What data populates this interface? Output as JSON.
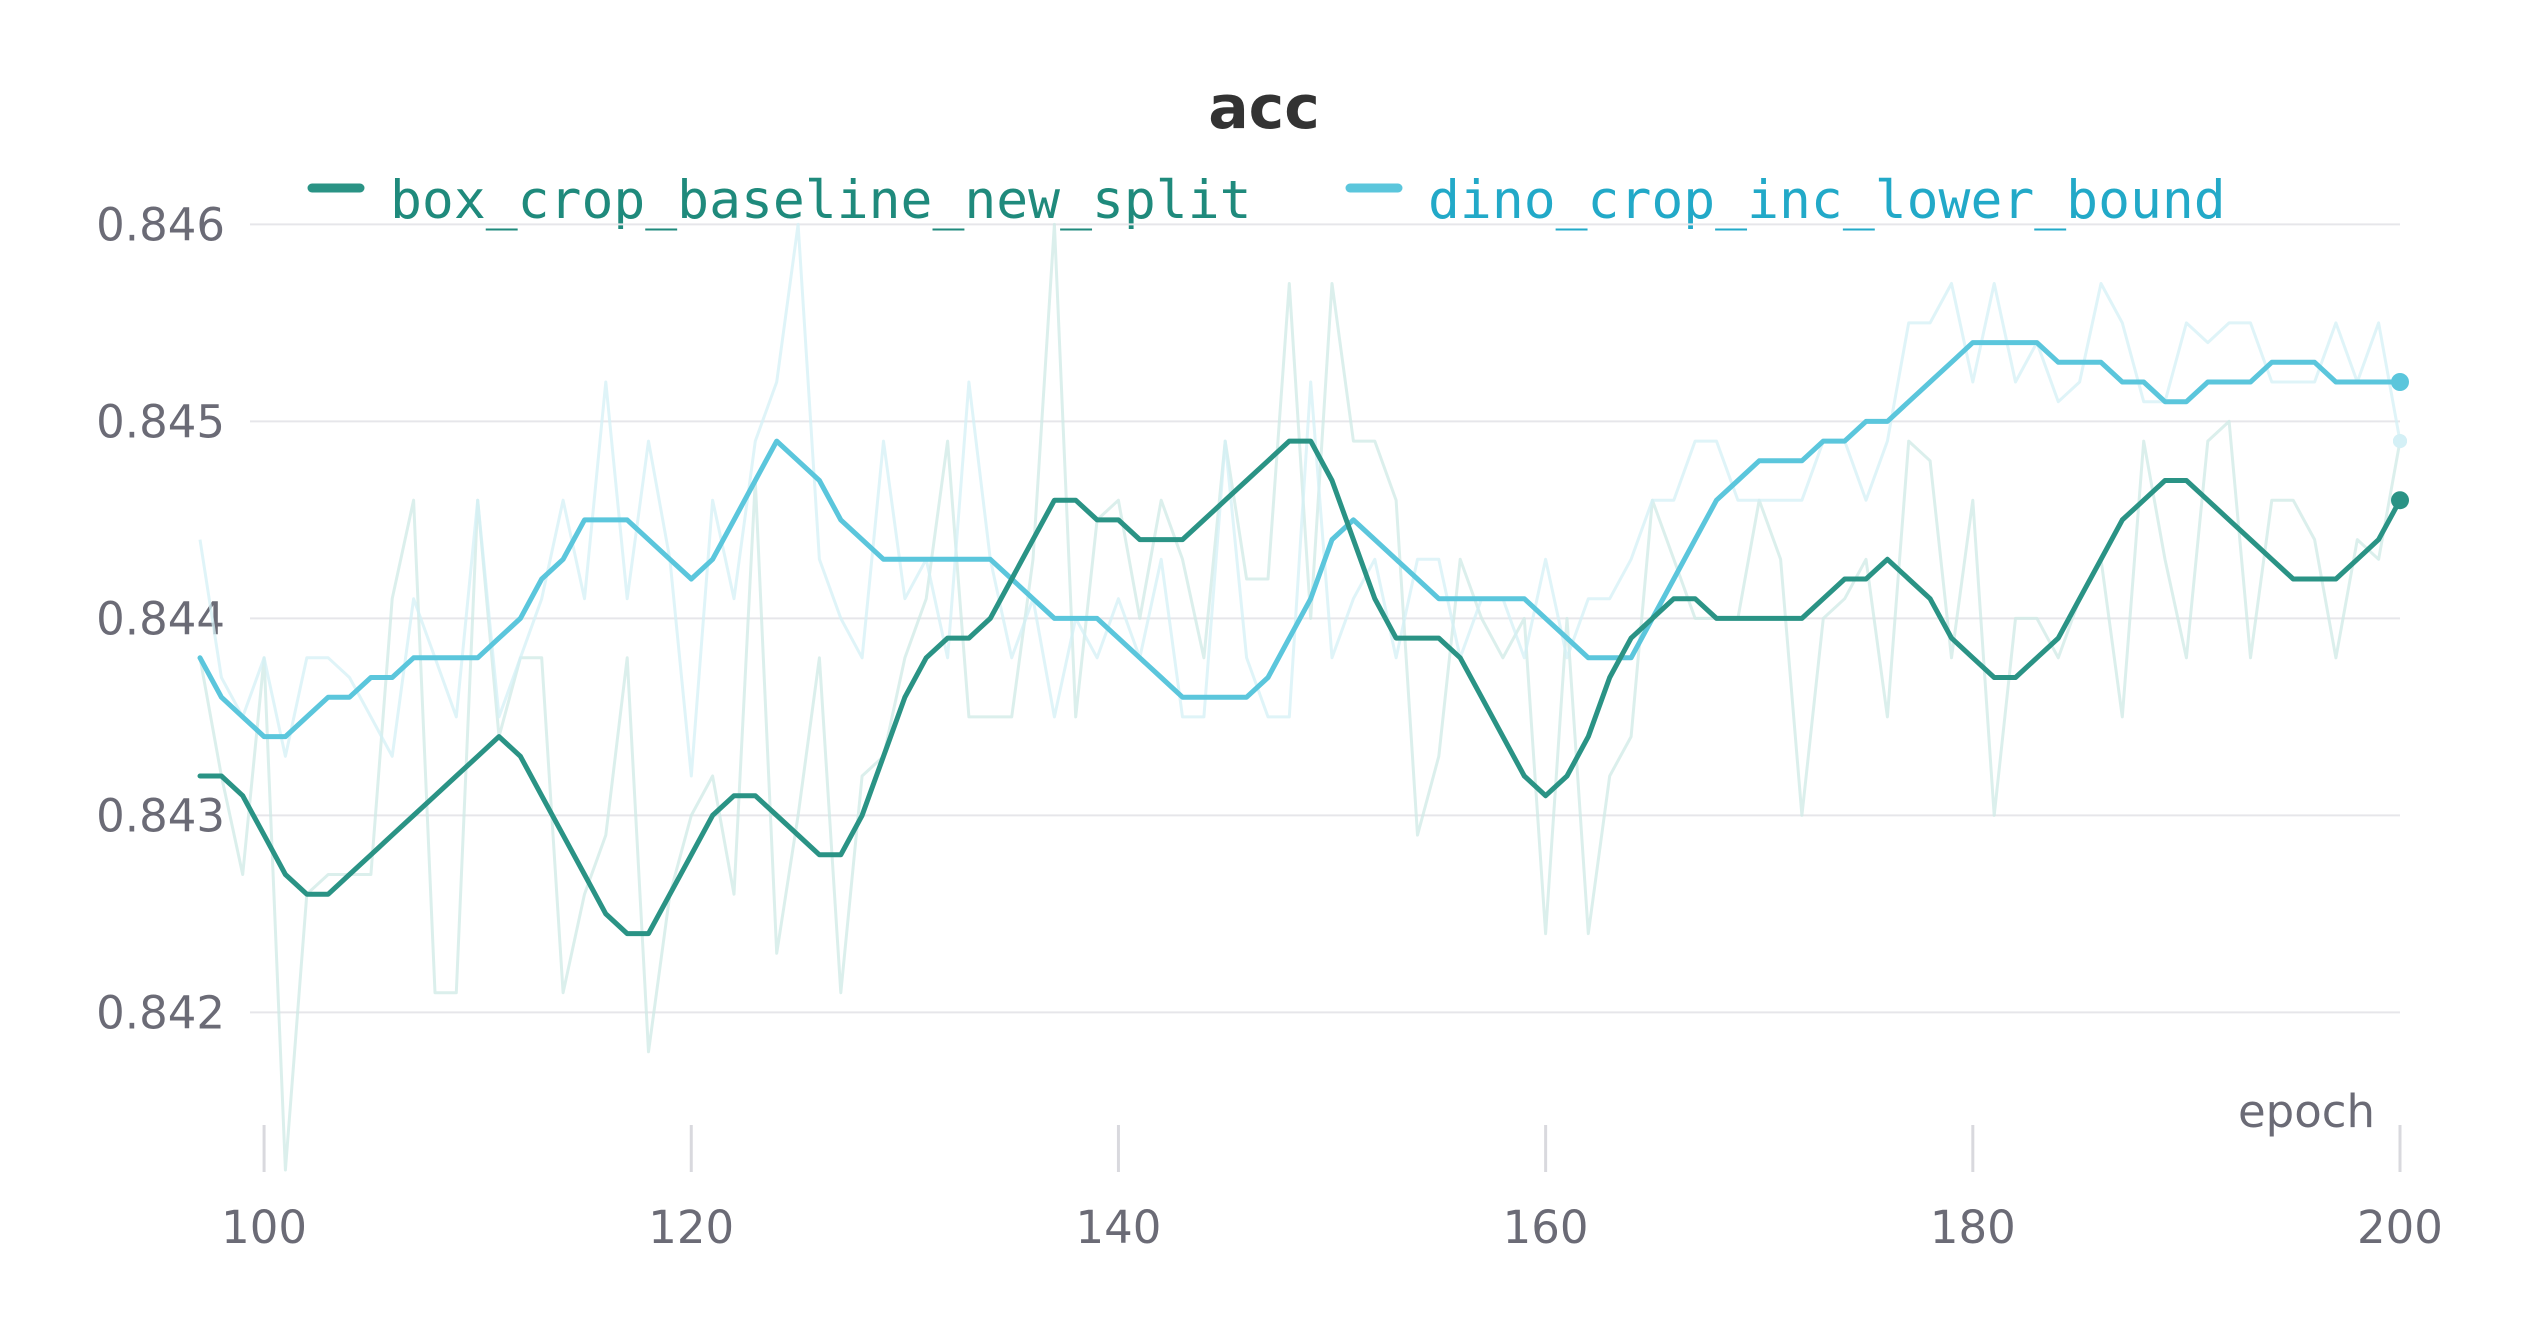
{
  "chart_data": {
    "type": "line",
    "title": "acc",
    "xlabel": "epoch",
    "ylabel": "",
    "xlim": [
      97,
      200
    ],
    "ylim": [
      0.8412,
      0.8462
    ],
    "x_ticks": [
      100,
      120,
      140,
      160,
      180,
      200
    ],
    "y_ticks": [
      0.842,
      0.843,
      0.844,
      0.845,
      0.846
    ],
    "x_tick_labels": [
      "100",
      "120",
      "140",
      "160",
      "180",
      "200"
    ],
    "y_tick_labels": [
      "0.842",
      "0.843",
      "0.844",
      "0.845",
      "0.846"
    ],
    "grid": true,
    "legend_position": "top-center",
    "series": [
      {
        "name": "box_crop_baseline_new_split",
        "color": "#2a9385",
        "x": [
          97,
          98,
          99,
          100,
          101,
          102,
          103,
          104,
          105,
          106,
          107,
          108,
          109,
          110,
          111,
          112,
          113,
          114,
          115,
          116,
          117,
          118,
          119,
          120,
          121,
          122,
          123,
          124,
          125,
          126,
          127,
          128,
          129,
          130,
          131,
          132,
          133,
          134,
          135,
          136,
          137,
          138,
          139,
          140,
          141,
          142,
          143,
          144,
          145,
          146,
          147,
          148,
          149,
          150,
          151,
          152,
          153,
          154,
          155,
          156,
          157,
          158,
          159,
          160,
          161,
          162,
          163,
          164,
          165,
          166,
          167,
          168,
          169,
          170,
          171,
          172,
          173,
          174,
          175,
          176,
          177,
          178,
          179,
          180,
          181,
          182,
          183,
          184,
          185,
          186,
          187,
          188,
          189,
          190,
          191,
          192,
          193,
          194,
          195,
          196,
          197,
          198,
          199,
          200
        ],
        "smoothed": [
          0.8432,
          0.8432,
          0.8431,
          0.8429,
          0.8427,
          0.8426,
          0.8426,
          0.8427,
          0.8428,
          0.8429,
          0.843,
          0.8431,
          0.8432,
          0.8433,
          0.8434,
          0.8433,
          0.8431,
          0.8429,
          0.8427,
          0.8425,
          0.8424,
          0.8424,
          0.8426,
          0.8428,
          0.843,
          0.8431,
          0.8431,
          0.843,
          0.8429,
          0.8428,
          0.8428,
          0.843,
          0.8433,
          0.8436,
          0.8438,
          0.8439,
          0.8439,
          0.844,
          0.8442,
          0.8444,
          0.8446,
          0.8446,
          0.8445,
          0.8445,
          0.8444,
          0.8444,
          0.8444,
          0.8445,
          0.8446,
          0.8447,
          0.8448,
          0.8449,
          0.8449,
          0.8447,
          0.8444,
          0.8441,
          0.8439,
          0.8439,
          0.8439,
          0.8438,
          0.8436,
          0.8434,
          0.8432,
          0.8431,
          0.8432,
          0.8434,
          0.8437,
          0.8439,
          0.844,
          0.8441,
          0.8441,
          0.844,
          0.844,
          0.844,
          0.844,
          0.844,
          0.8441,
          0.8442,
          0.8442,
          0.8443,
          0.8442,
          0.8441,
          0.8439,
          0.8438,
          0.8437,
          0.8437,
          0.8438,
          0.8439,
          0.8441,
          0.8443,
          0.8445,
          0.8446,
          0.8447,
          0.8447,
          0.8446,
          0.8445,
          0.8444,
          0.8443,
          0.8442,
          0.8442,
          0.8442,
          0.8443,
          0.8444,
          0.8446
        ],
        "raw": [
          0.8438,
          0.8432,
          0.8427,
          0.8438,
          0.8412,
          0.8426,
          0.8427,
          0.8427,
          0.8427,
          0.8441,
          0.8446,
          0.8421,
          0.8421,
          0.8446,
          0.8434,
          0.8438,
          0.8438,
          0.8421,
          0.8426,
          0.8429,
          0.8438,
          0.8418,
          0.8426,
          0.843,
          0.8432,
          0.8426,
          0.8447,
          0.8423,
          0.843,
          0.8438,
          0.8421,
          0.8432,
          0.8433,
          0.8438,
          0.8441,
          0.8449,
          0.8435,
          0.8435,
          0.8435,
          0.8443,
          0.846,
          0.8435,
          0.8445,
          0.8446,
          0.844,
          0.8446,
          0.8443,
          0.8438,
          0.8449,
          0.8442,
          0.8442,
          0.8457,
          0.844,
          0.8457,
          0.8449,
          0.8449,
          0.8446,
          0.8429,
          0.8433,
          0.8443,
          0.844,
          0.8438,
          0.844,
          0.8424,
          0.844,
          0.8424,
          0.8432,
          0.8434,
          0.8446,
          0.8443,
          0.844,
          0.844,
          0.844,
          0.8446,
          0.8443,
          0.843,
          0.844,
          0.8441,
          0.8443,
          0.8435,
          0.8449,
          0.8448,
          0.8438,
          0.8446,
          0.843,
          0.844,
          0.844,
          0.8438,
          0.8441,
          0.8443,
          0.8435,
          0.8449,
          0.8443,
          0.8438,
          0.8449,
          0.845,
          0.8438,
          0.8446,
          0.8446,
          0.8444,
          0.8438,
          0.8444,
          0.8443,
          0.8449
        ]
      },
      {
        "name": "dino_crop_inc_lower_bound",
        "color": "#5bc6dc",
        "x": [
          97,
          98,
          99,
          100,
          101,
          102,
          103,
          104,
          105,
          106,
          107,
          108,
          109,
          110,
          111,
          112,
          113,
          114,
          115,
          116,
          117,
          118,
          119,
          120,
          121,
          122,
          123,
          124,
          125,
          126,
          127,
          128,
          129,
          130,
          131,
          132,
          133,
          134,
          135,
          136,
          137,
          138,
          139,
          140,
          141,
          142,
          143,
          144,
          145,
          146,
          147,
          148,
          149,
          150,
          151,
          152,
          153,
          154,
          155,
          156,
          157,
          158,
          159,
          160,
          161,
          162,
          163,
          164,
          165,
          166,
          167,
          168,
          169,
          170,
          171,
          172,
          173,
          174,
          175,
          176,
          177,
          178,
          179,
          180,
          181,
          182,
          183,
          184,
          185,
          186,
          187,
          188,
          189,
          190,
          191,
          192,
          193,
          194,
          195,
          196,
          197,
          198,
          199,
          200
        ],
        "smoothed": [
          0.8438,
          0.8436,
          0.8435,
          0.8434,
          0.8434,
          0.8435,
          0.8436,
          0.8436,
          0.8437,
          0.8437,
          0.8438,
          0.8438,
          0.8438,
          0.8438,
          0.8439,
          0.844,
          0.8442,
          0.8443,
          0.8445,
          0.8445,
          0.8445,
          0.8444,
          0.8443,
          0.8442,
          0.8443,
          0.8445,
          0.8447,
          0.8449,
          0.8448,
          0.8447,
          0.8445,
          0.8444,
          0.8443,
          0.8443,
          0.8443,
          0.8443,
          0.8443,
          0.8443,
          0.8442,
          0.8441,
          0.844,
          0.844,
          0.844,
          0.8439,
          0.8438,
          0.8437,
          0.8436,
          0.8436,
          0.8436,
          0.8436,
          0.8437,
          0.8439,
          0.8441,
          0.8444,
          0.8445,
          0.8444,
          0.8443,
          0.8442,
          0.8441,
          0.8441,
          0.8441,
          0.8441,
          0.8441,
          0.844,
          0.8439,
          0.8438,
          0.8438,
          0.8438,
          0.844,
          0.8442,
          0.8444,
          0.8446,
          0.8447,
          0.8448,
          0.8448,
          0.8448,
          0.8449,
          0.8449,
          0.845,
          0.845,
          0.8451,
          0.8452,
          0.8453,
          0.8454,
          0.8454,
          0.8454,
          0.8454,
          0.8453,
          0.8453,
          0.8453,
          0.8452,
          0.8452,
          0.8451,
          0.8451,
          0.8452,
          0.8452,
          0.8452,
          0.8453,
          0.8453,
          0.8453,
          0.8452,
          0.8452,
          0.8452,
          0.8452
        ],
        "raw": [
          0.8444,
          0.8437,
          0.8435,
          0.8438,
          0.8433,
          0.8438,
          0.8438,
          0.8437,
          0.8435,
          0.8433,
          0.8441,
          0.8438,
          0.8435,
          0.8446,
          0.8435,
          0.8438,
          0.8441,
          0.8446,
          0.8441,
          0.8452,
          0.8441,
          0.8449,
          0.8443,
          0.8432,
          0.8446,
          0.8441,
          0.8449,
          0.8452,
          0.846,
          0.8443,
          0.844,
          0.8438,
          0.8449,
          0.8441,
          0.8443,
          0.8438,
          0.8452,
          0.8443,
          0.8438,
          0.8441,
          0.8435,
          0.844,
          0.8438,
          0.8441,
          0.8438,
          0.8443,
          0.8435,
          0.8435,
          0.8449,
          0.8438,
          0.8435,
          0.8435,
          0.8452,
          0.8438,
          0.8441,
          0.8443,
          0.8438,
          0.8443,
          0.8443,
          0.8438,
          0.8441,
          0.8441,
          0.8438,
          0.8443,
          0.8438,
          0.8441,
          0.8441,
          0.8443,
          0.8446,
          0.8446,
          0.8449,
          0.8449,
          0.8446,
          0.8446,
          0.8446,
          0.8446,
          0.8449,
          0.8449,
          0.8446,
          0.8449,
          0.8455,
          0.8455,
          0.8457,
          0.8452,
          0.8457,
          0.8452,
          0.8454,
          0.8451,
          0.8452,
          0.8457,
          0.8455,
          0.8451,
          0.8451,
          0.8455,
          0.8454,
          0.8455,
          0.8455,
          0.8452,
          0.8452,
          0.8452,
          0.8455,
          0.8452,
          0.8455,
          0.8449
        ]
      }
    ]
  }
}
